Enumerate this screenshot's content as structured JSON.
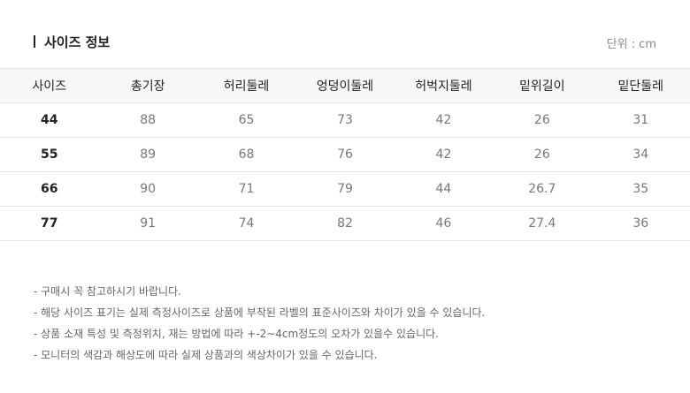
{
  "header": {
    "title": "사이즈 정보",
    "unit": "단위 : cm"
  },
  "table": {
    "columns": [
      "사이즈",
      "총기장",
      "허리둘레",
      "엉덩이둘레",
      "허벅지둘레",
      "밑위길이",
      "밑단둘레"
    ],
    "rows": [
      [
        "44",
        "88",
        "65",
        "73",
        "42",
        "26",
        "31"
      ],
      [
        "55",
        "89",
        "68",
        "76",
        "42",
        "26",
        "34"
      ],
      [
        "66",
        "90",
        "71",
        "79",
        "44",
        "26.7",
        "35"
      ],
      [
        "77",
        "91",
        "74",
        "82",
        "46",
        "27.4",
        "36"
      ]
    ]
  },
  "notes": [
    "- 구매시 꼭 참고하시기 바랍니다.",
    "- 해당 사이즈 표기는 실제 측정사이즈로 상품에 부착된 라벨의 표준사이즈와 차이가 있을 수 있습니다.",
    "- 상품 소재 특성 및 측정위치, 재는 방법에 따라 +-2~4cm정도의 오차가 있을수 있습니다.",
    "- 모니터의 색감과 해상도에 따라 실제 상품과의 색상차이가 있을 수 있습니다."
  ]
}
